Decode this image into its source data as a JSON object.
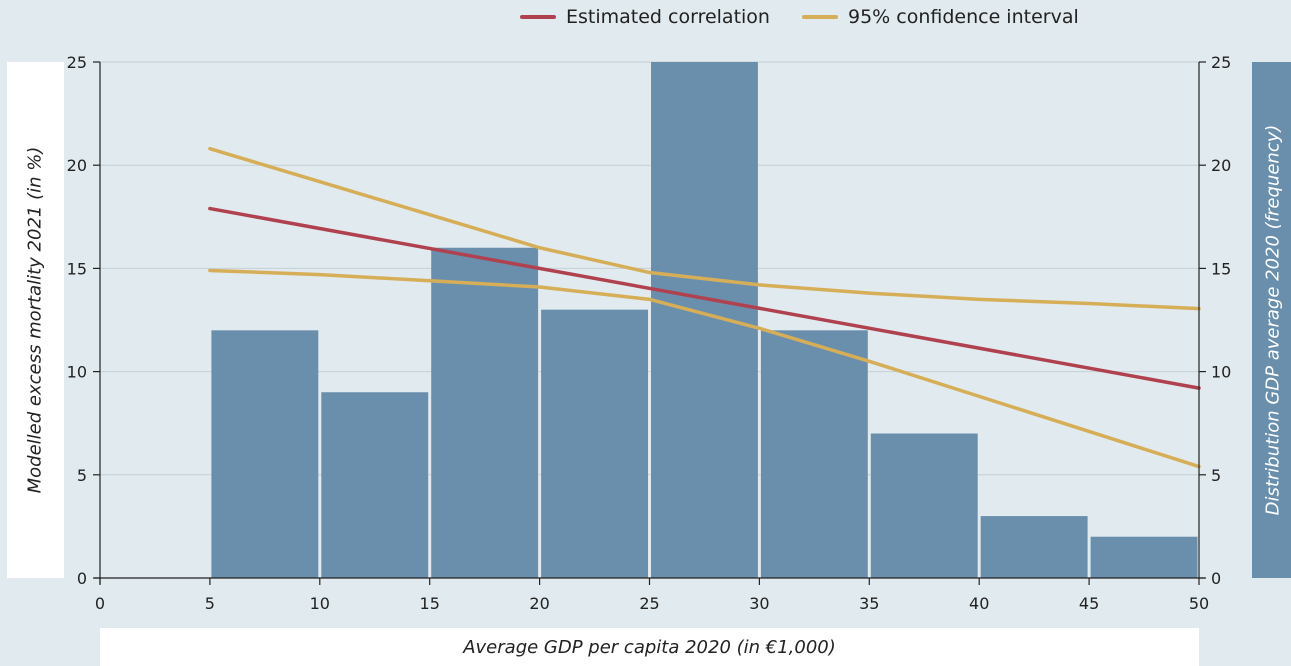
{
  "legend": {
    "correlation_label": "Estimated correlation",
    "ci_label": "95% confidence interval"
  },
  "colors": {
    "background": "#e1eaee",
    "bars": "#6a8fad",
    "correlation": "#b0414f",
    "ci": "#d6ae57",
    "grid": "#c4d0d6"
  },
  "chart_data": {
    "type": "bar",
    "xlabel": "Average GDP per capita 2020 (in €1,000)",
    "ylabel": "Modelled excess mortality 2021 (in %)",
    "y2label": "Distribution GDP average 2020 (frequency)",
    "xlim": [
      0,
      50
    ],
    "ylim": [
      0,
      25
    ],
    "y2lim": [
      0,
      25
    ],
    "xticks": [
      0,
      5,
      10,
      15,
      20,
      25,
      30,
      35,
      40,
      45,
      50
    ],
    "yticks": [
      0,
      5,
      10,
      15,
      20,
      25
    ],
    "y2ticks": [
      0,
      5,
      10,
      15,
      20,
      25
    ],
    "histogram": {
      "bins": [
        [
          5,
          10
        ],
        [
          10,
          15
        ],
        [
          15,
          20
        ],
        [
          20,
          25
        ],
        [
          25,
          30
        ],
        [
          30,
          35
        ],
        [
          35,
          40
        ],
        [
          40,
          45
        ],
        [
          45,
          50
        ]
      ],
      "values": [
        12,
        9,
        16,
        13,
        25,
        12,
        7,
        3,
        2
      ]
    },
    "series": [
      {
        "name": "Estimated correlation",
        "x": [
          5,
          50
        ],
        "y": [
          17.9,
          9.2
        ]
      },
      {
        "name": "95% confidence interval",
        "x": [
          5,
          10,
          15,
          20,
          25,
          30,
          35,
          40,
          45,
          50
        ],
        "y": [
          20.8,
          19.2,
          17.6,
          16.0,
          14.8,
          14.2,
          13.8,
          13.5,
          13.3,
          13.05
        ]
      },
      {
        "name": "95% confidence interval",
        "x": [
          5,
          10,
          15,
          20,
          25,
          30,
          35,
          40,
          45,
          50
        ],
        "y": [
          14.9,
          14.7,
          14.4,
          14.1,
          13.5,
          12.1,
          10.5,
          8.8,
          7.1,
          5.4
        ]
      }
    ]
  }
}
